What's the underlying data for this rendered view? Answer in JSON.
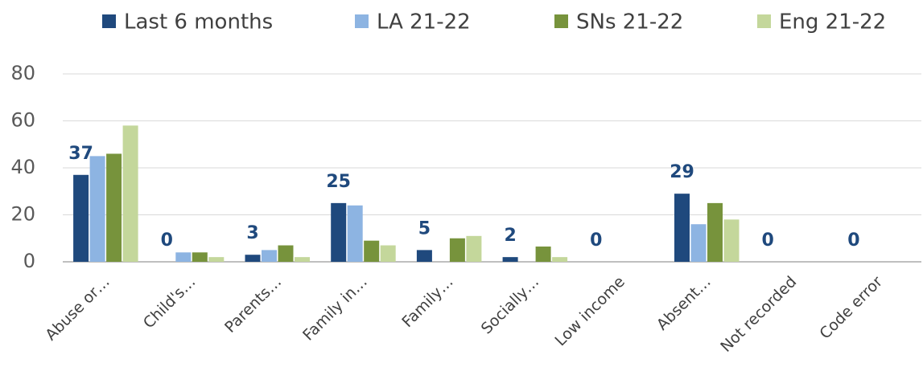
{
  "chart_data": {
    "type": "bar",
    "categories": [
      "Abuse or…",
      "Child's…",
      "Parents…",
      "Family in…",
      "Family…",
      "Socially…",
      "Low income",
      "Absent…",
      "Not recorded",
      "Code error"
    ],
    "series": [
      {
        "name": "Last 6 months",
        "color": "#1f497d",
        "values": [
          37,
          0,
          3,
          25,
          5,
          2,
          0,
          29,
          0,
          0
        ]
      },
      {
        "name": "LA 21-22",
        "color": "#8db4e2",
        "values": [
          45,
          4,
          5,
          24,
          0,
          0,
          0,
          16,
          0,
          0
        ]
      },
      {
        "name": "SNs 21-22",
        "color": "#77933c",
        "values": [
          46,
          4,
          7,
          9,
          10,
          6.5,
          0,
          25,
          0,
          0
        ]
      },
      {
        "name": "Eng 21-22",
        "color": "#c4d79b",
        "values": [
          58,
          2,
          2,
          7,
          11,
          2,
          0,
          18,
          0,
          0
        ]
      }
    ],
    "data_labels_series": 0,
    "ylim": [
      0,
      80
    ],
    "yticks": [
      0,
      20,
      40,
      60,
      80
    ],
    "grid": true,
    "legend": "top"
  }
}
